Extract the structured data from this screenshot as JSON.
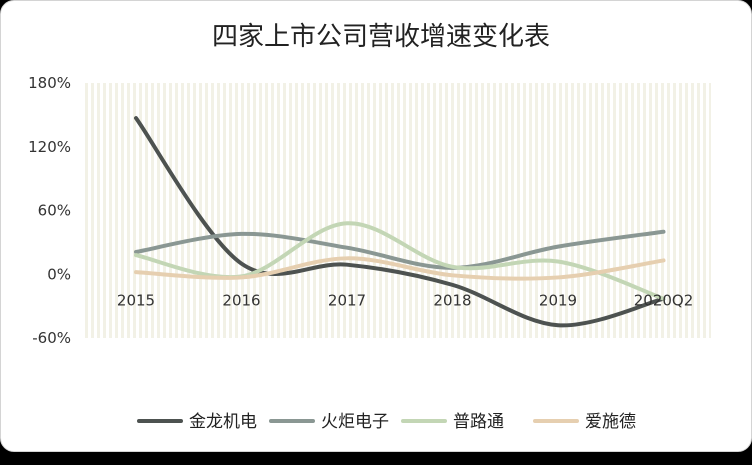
{
  "chart_data": {
    "type": "line",
    "title": "四家上市公司营收增速变化表",
    "categories": [
      "2015",
      "2016",
      "2017",
      "2018",
      "2019",
      "2020Q2"
    ],
    "ylim": [
      -60,
      180
    ],
    "yticks": [
      -60,
      0,
      60,
      120,
      180
    ],
    "ytick_labels": [
      "-60%",
      "0%",
      "60%",
      "120%",
      "180%"
    ],
    "xlabel": "",
    "ylabel": "",
    "legend_position": "bottom",
    "series": [
      {
        "name": "金龙机电",
        "color": "#4d5250",
        "values": [
          147,
          10,
          9,
          -10,
          -48,
          -23
        ]
      },
      {
        "name": "火炬电子",
        "color": "#8a9793",
        "values": [
          21,
          38,
          25,
          6,
          26,
          40
        ]
      },
      {
        "name": "普路通",
        "color": "#c3d6b5",
        "values": [
          18,
          -2,
          48,
          7,
          12,
          -23
        ]
      },
      {
        "name": "爱施德",
        "color": "#e6cfb0",
        "values": [
          2,
          -3,
          15,
          -1,
          -3,
          13
        ]
      }
    ]
  }
}
